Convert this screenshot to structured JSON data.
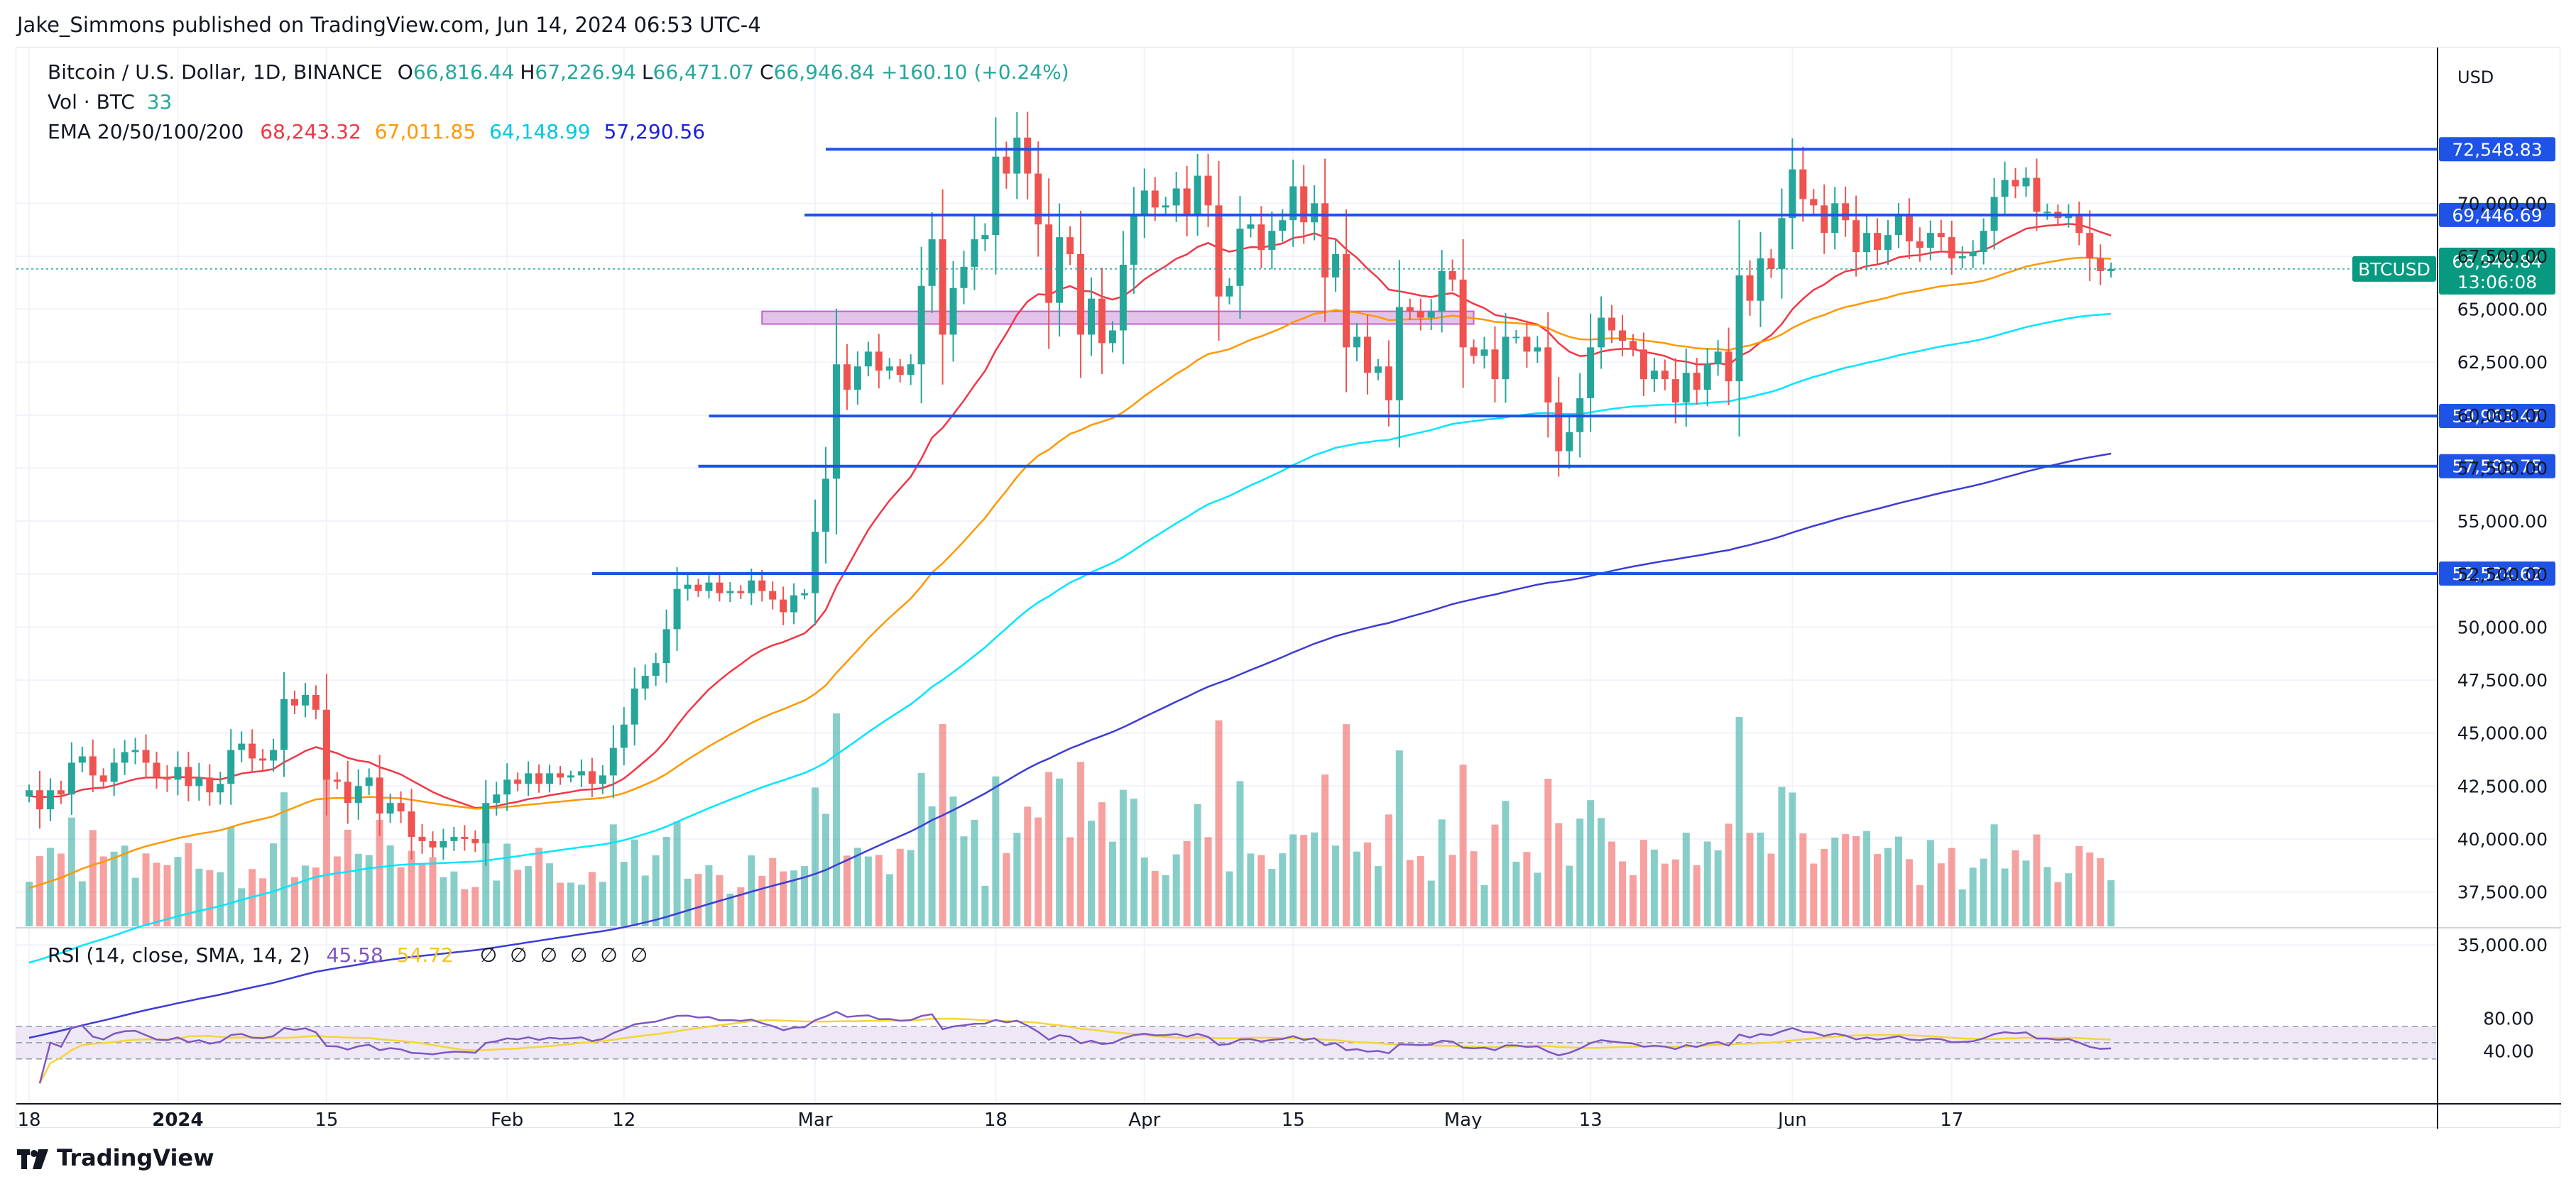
{
  "publisher_line": "Jake_Simmons published on TradingView.com, Jun 14, 2024 06:53 UTC-4",
  "brand": "TradingView",
  "legend": {
    "symbol": "Bitcoin / U.S. Dollar, 1D, BINANCE",
    "ohlc": [
      {
        "k": "O",
        "v": "66,816.44"
      },
      {
        "k": "H",
        "v": "67,226.94"
      },
      {
        "k": "L",
        "v": "66,471.07"
      },
      {
        "k": "C",
        "v": "66,946.84"
      }
    ],
    "change": "+160.10 (+0.24%)",
    "vol_label": "Vol · BTC",
    "vol_value": "33",
    "ema_label": "EMA 20/50/100/200",
    "ema_values": [
      "68,243.32",
      "67,011.85",
      "64,148.99",
      "57,290.56"
    ],
    "rsi_label": "RSI (14, close, SMA, 14, 2)",
    "rsi_values": [
      "45.58",
      "54.72"
    ],
    "rsi_na": [
      "∅",
      "∅",
      "∅",
      "∅",
      "∅",
      "∅"
    ]
  },
  "colors": {
    "up": "#26a69a",
    "down": "#ef5350",
    "ema20": "#f23645",
    "ema50": "#ff9800",
    "ema100": "#00e5ff",
    "ema200": "#3c3cd6",
    "level_line": "#1e53e5",
    "zone_fill": "#e1bee7",
    "zone_stroke": "#c050c8",
    "rsi_line": "#7e57c2",
    "rsi_ma": "#f5d538",
    "rsi_band": "#ede7f6",
    "currency_tag": "#089981"
  },
  "chart_data": {
    "type": "candlestick",
    "symbol_tag": "BTCUSD",
    "currency": "USD",
    "last_price": "66,946.84",
    "countdown": "13:06:08",
    "ylim": [
      33800,
      74400
    ],
    "y_ticks": [
      "35,000.00",
      "37,500.00",
      "40,000.00",
      "42,500.00",
      "45,000.00",
      "47,500.00",
      "50,000.00",
      "52,500.00",
      "55,000.00",
      "57,500.00",
      "60,000.00",
      "62,500.00",
      "65,000.00",
      "67,500.00",
      "70,000.00"
    ],
    "y_tick_values": [
      35000,
      37500,
      40000,
      42500,
      45000,
      47500,
      50000,
      52500,
      55000,
      57500,
      60000,
      62500,
      65000,
      67500,
      70000
    ],
    "x_ticks": [
      {
        "label": "18",
        "day": 0,
        "bold": false
      },
      {
        "label": "2024",
        "day": 14,
        "bold": true
      },
      {
        "label": "15",
        "day": 28,
        "bold": false
      },
      {
        "label": "Feb",
        "day": 45,
        "bold": false
      },
      {
        "label": "12",
        "day": 56,
        "bold": false
      },
      {
        "label": "Mar",
        "day": 74,
        "bold": false
      },
      {
        "label": "18",
        "day": 91,
        "bold": false
      },
      {
        "label": "Apr",
        "day": 105,
        "bold": false
      },
      {
        "label": "15",
        "day": 119,
        "bold": false
      },
      {
        "label": "May",
        "day": 135,
        "bold": false
      },
      {
        "label": "13",
        "day": 147,
        "bold": false
      },
      {
        "label": "Jun",
        "day": 166,
        "bold": false
      },
      {
        "label": "17",
        "day": 181,
        "bold": false
      }
    ],
    "first_day": "2023-12-18",
    "closes": [
      42300,
      41400,
      42300,
      42100,
      43600,
      43900,
      43000,
      42700,
      43600,
      44100,
      44200,
      43600,
      42900,
      42800,
      43400,
      42500,
      42900,
      42200,
      42600,
      44200,
      44500,
      43800,
      43700,
      44200,
      46600,
      46300,
      46800,
      46100,
      42800,
      42700,
      41700,
      42500,
      42900,
      41200,
      41700,
      41300,
      40100,
      39900,
      39600,
      39900,
      40100,
      40000,
      39800,
      41700,
      42100,
      42800,
      42600,
      43100,
      42600,
      43100,
      42900,
      43000,
      43200,
      42600,
      43000,
      44300,
      45400,
      47100,
      47700,
      48300,
      49900,
      51800,
      52000,
      51700,
      52100,
      51600,
      51700,
      51600,
      52200,
      51700,
      51300,
      50700,
      51500,
      51600,
      54500,
      57000,
      62400,
      61200,
      62300,
      63000,
      62100,
      62300,
      61900,
      62400,
      66100,
      68300,
      63800,
      66000,
      67000,
      68300,
      68500,
      72200,
      71400,
      73100,
      71400,
      69000,
      65300,
      68400,
      67600,
      63800,
      65500,
      63400,
      64000,
      67100,
      69400,
      70600,
      69800,
      69900,
      70700,
      69500,
      71300,
      69900,
      65600,
      66100,
      68800,
      69000,
      67800,
      68700,
      69200,
      70800,
      69100,
      70000,
      66500,
      67600,
      63200,
      63700,
      62000,
      62300,
      60700,
      65100,
      64900,
      64600,
      64900,
      66800,
      66400,
      63200,
      62800,
      63100,
      61700,
      63700,
      63700,
      63000,
      63200,
      60600,
      58300,
      59200,
      60800,
      63200,
      64600,
      64000,
      63500,
      63100,
      61700,
      62100,
      61700,
      60600,
      62000,
      61200,
      62400,
      63000,
      61600,
      66600,
      65400,
      67400,
      66900,
      69300,
      71600,
      70200,
      69900,
      68600,
      70000,
      69200,
      67700,
      68600,
      67800,
      68500,
      69400,
      68200,
      67900,
      68600,
      68400,
      67400,
      67500,
      67700,
      68700,
      70300,
      71100,
      70800,
      71200,
      69600,
      69600,
      69300,
      69500,
      68600,
      67400,
      66800,
      66900
    ],
    "rsi_current": 45.58,
    "rsi_ma_current": 54.72,
    "rsi_ticks": [
      "80.00",
      "40.00"
    ],
    "rsi_tick_values": [
      80,
      40
    ],
    "rsi_band": [
      70,
      30
    ],
    "horizontal_levels": [
      {
        "price": 72548.83,
        "label": "72,548.83",
        "from_day": 75
      },
      {
        "price": 69446.69,
        "label": "69,446.69",
        "from_day": 73
      },
      {
        "price": 59963.47,
        "label": "59,963.47",
        "from_day": 64
      },
      {
        "price": 57593.75,
        "label": "57,593.75",
        "from_day": 63
      },
      {
        "price": 52524.62,
        "label": "52,524.62",
        "from_day": 53
      }
    ],
    "zone": {
      "from_day": 69,
      "to_day": 136,
      "low": 64300,
      "high": 64900
    }
  }
}
